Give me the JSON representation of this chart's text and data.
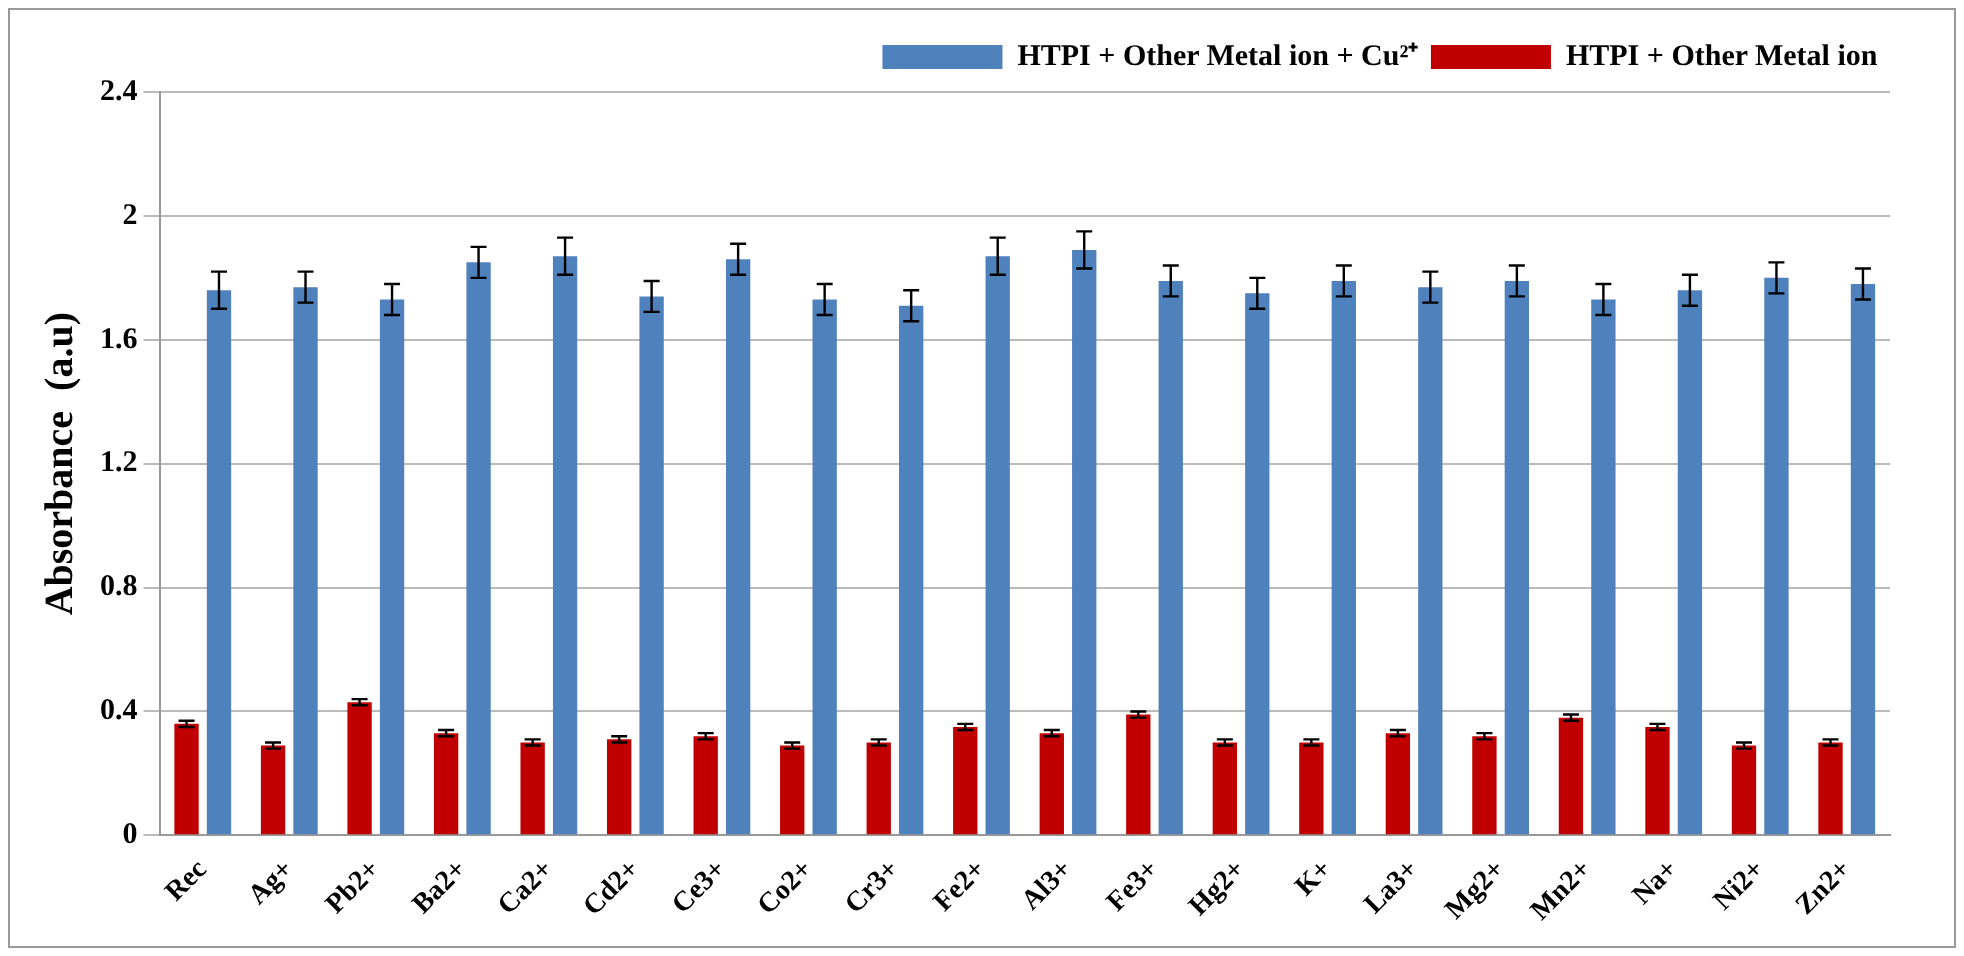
{
  "chart_data": {
    "type": "bar",
    "ylabel": "Absorbance  (a.u)",
    "categories": [
      "Rec",
      "Ag+",
      "Pb2+",
      "Ba2+",
      "Ca2+",
      "Cd2+",
      "Ce3+",
      "Co2+",
      "Cr3+",
      "Fe2+",
      "Al3+",
      "Fe3+",
      "Hg2+",
      "K+",
      "La3+",
      "Mg2+",
      "Mn2+",
      "Na+",
      "Ni2+",
      "Zn2+"
    ],
    "series": [
      {
        "name": "HTPI + Other Metal ion",
        "color": "#c00000",
        "values": [
          0.36,
          0.29,
          0.43,
          0.33,
          0.3,
          0.31,
          0.32,
          0.29,
          0.3,
          0.35,
          0.33,
          0.39,
          0.3,
          0.3,
          0.33,
          0.32,
          0.38,
          0.35,
          0.29,
          0.3
        ],
        "errors": [
          0.01,
          0.01,
          0.01,
          0.01,
          0.01,
          0.01,
          0.01,
          0.01,
          0.01,
          0.01,
          0.01,
          0.01,
          0.01,
          0.01,
          0.01,
          0.01,
          0.01,
          0.01,
          0.01,
          0.01
        ]
      },
      {
        "name": "HTPI + Other Metal ion + Cu²⁺",
        "color": "#4f81bd",
        "values": [
          1.76,
          1.77,
          1.73,
          1.85,
          1.87,
          1.74,
          1.86,
          1.73,
          1.71,
          1.87,
          1.89,
          1.79,
          1.75,
          1.79,
          1.77,
          1.79,
          1.73,
          1.76,
          1.8,
          1.78
        ],
        "errors": [
          0.06,
          0.05,
          0.05,
          0.05,
          0.06,
          0.05,
          0.05,
          0.05,
          0.05,
          0.06,
          0.06,
          0.05,
          0.05,
          0.05,
          0.05,
          0.05,
          0.05,
          0.05,
          0.05,
          0.05
        ]
      }
    ],
    "ylim": [
      0,
      2.4
    ],
    "yticks": [
      0,
      0.4,
      0.8,
      1.2,
      1.6,
      2,
      2.4
    ],
    "grid": "y",
    "legend": "top right"
  }
}
